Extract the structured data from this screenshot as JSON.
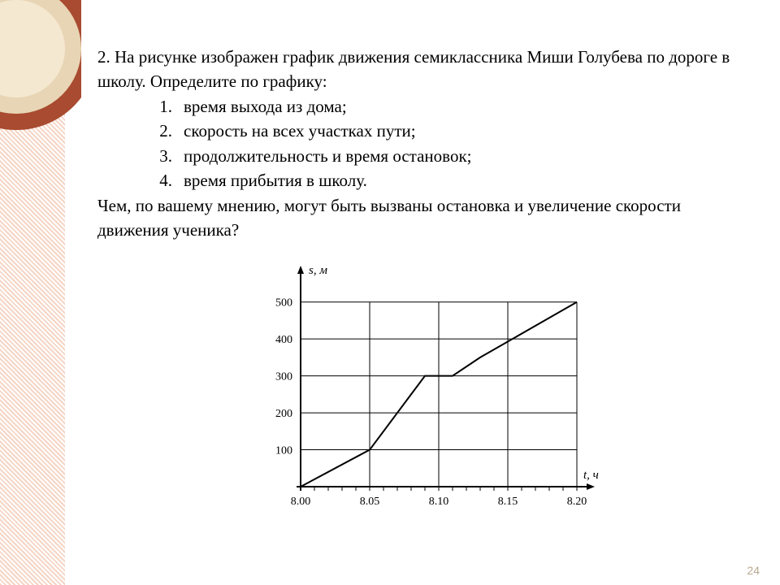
{
  "problem": {
    "intro": "2. На рисунке изображен график движения семиклассника Миши Голубева по дороге в школу. Определите по графику:",
    "items": [
      "время выхода из дома;",
      "скорость на всех участках пути;",
      "продолжительность и время остановок;",
      "время прибытия в школу."
    ],
    "outro": "Чем, по вашему мнению, могут быть  вызваны остановка и увеличение скорости движения ученика?"
  },
  "chart": {
    "type": "line",
    "ylabel": "s, м",
    "xlabel": "t, ч",
    "xlim": [
      8.0,
      8.2
    ],
    "ylim": [
      0,
      550
    ],
    "xticks": [
      8.0,
      8.05,
      8.1,
      8.15,
      8.2
    ],
    "xticklabels": [
      "8.00",
      "8.05",
      "8.10",
      "8.15",
      "8.20"
    ],
    "yticks": [
      0,
      100,
      200,
      300,
      400,
      500
    ],
    "yticklabels": [
      "",
      "100",
      "200",
      "300",
      "400",
      "500"
    ],
    "points_minutes": [
      {
        "t": 0,
        "s": 0
      },
      {
        "t": 5,
        "s": 100
      },
      {
        "t": 9,
        "s": 300
      },
      {
        "t": 11,
        "s": 300
      },
      {
        "t": 13,
        "s": 350
      },
      {
        "t": 20,
        "s": 500
      }
    ],
    "line_color": "#000000",
    "line_width": 2,
    "grid_color": "#000000",
    "axis_color": "#000000",
    "background_color": "#ffffff",
    "tick_fontsize": 14,
    "label_fontsize": 15
  },
  "page_number": "24",
  "decoration_colors": {
    "stripe": "#f5d5c5",
    "ring_outer": "#a84b30",
    "ring_mid": "#e8d5b5",
    "ring_inner": "#f5e8d0"
  }
}
